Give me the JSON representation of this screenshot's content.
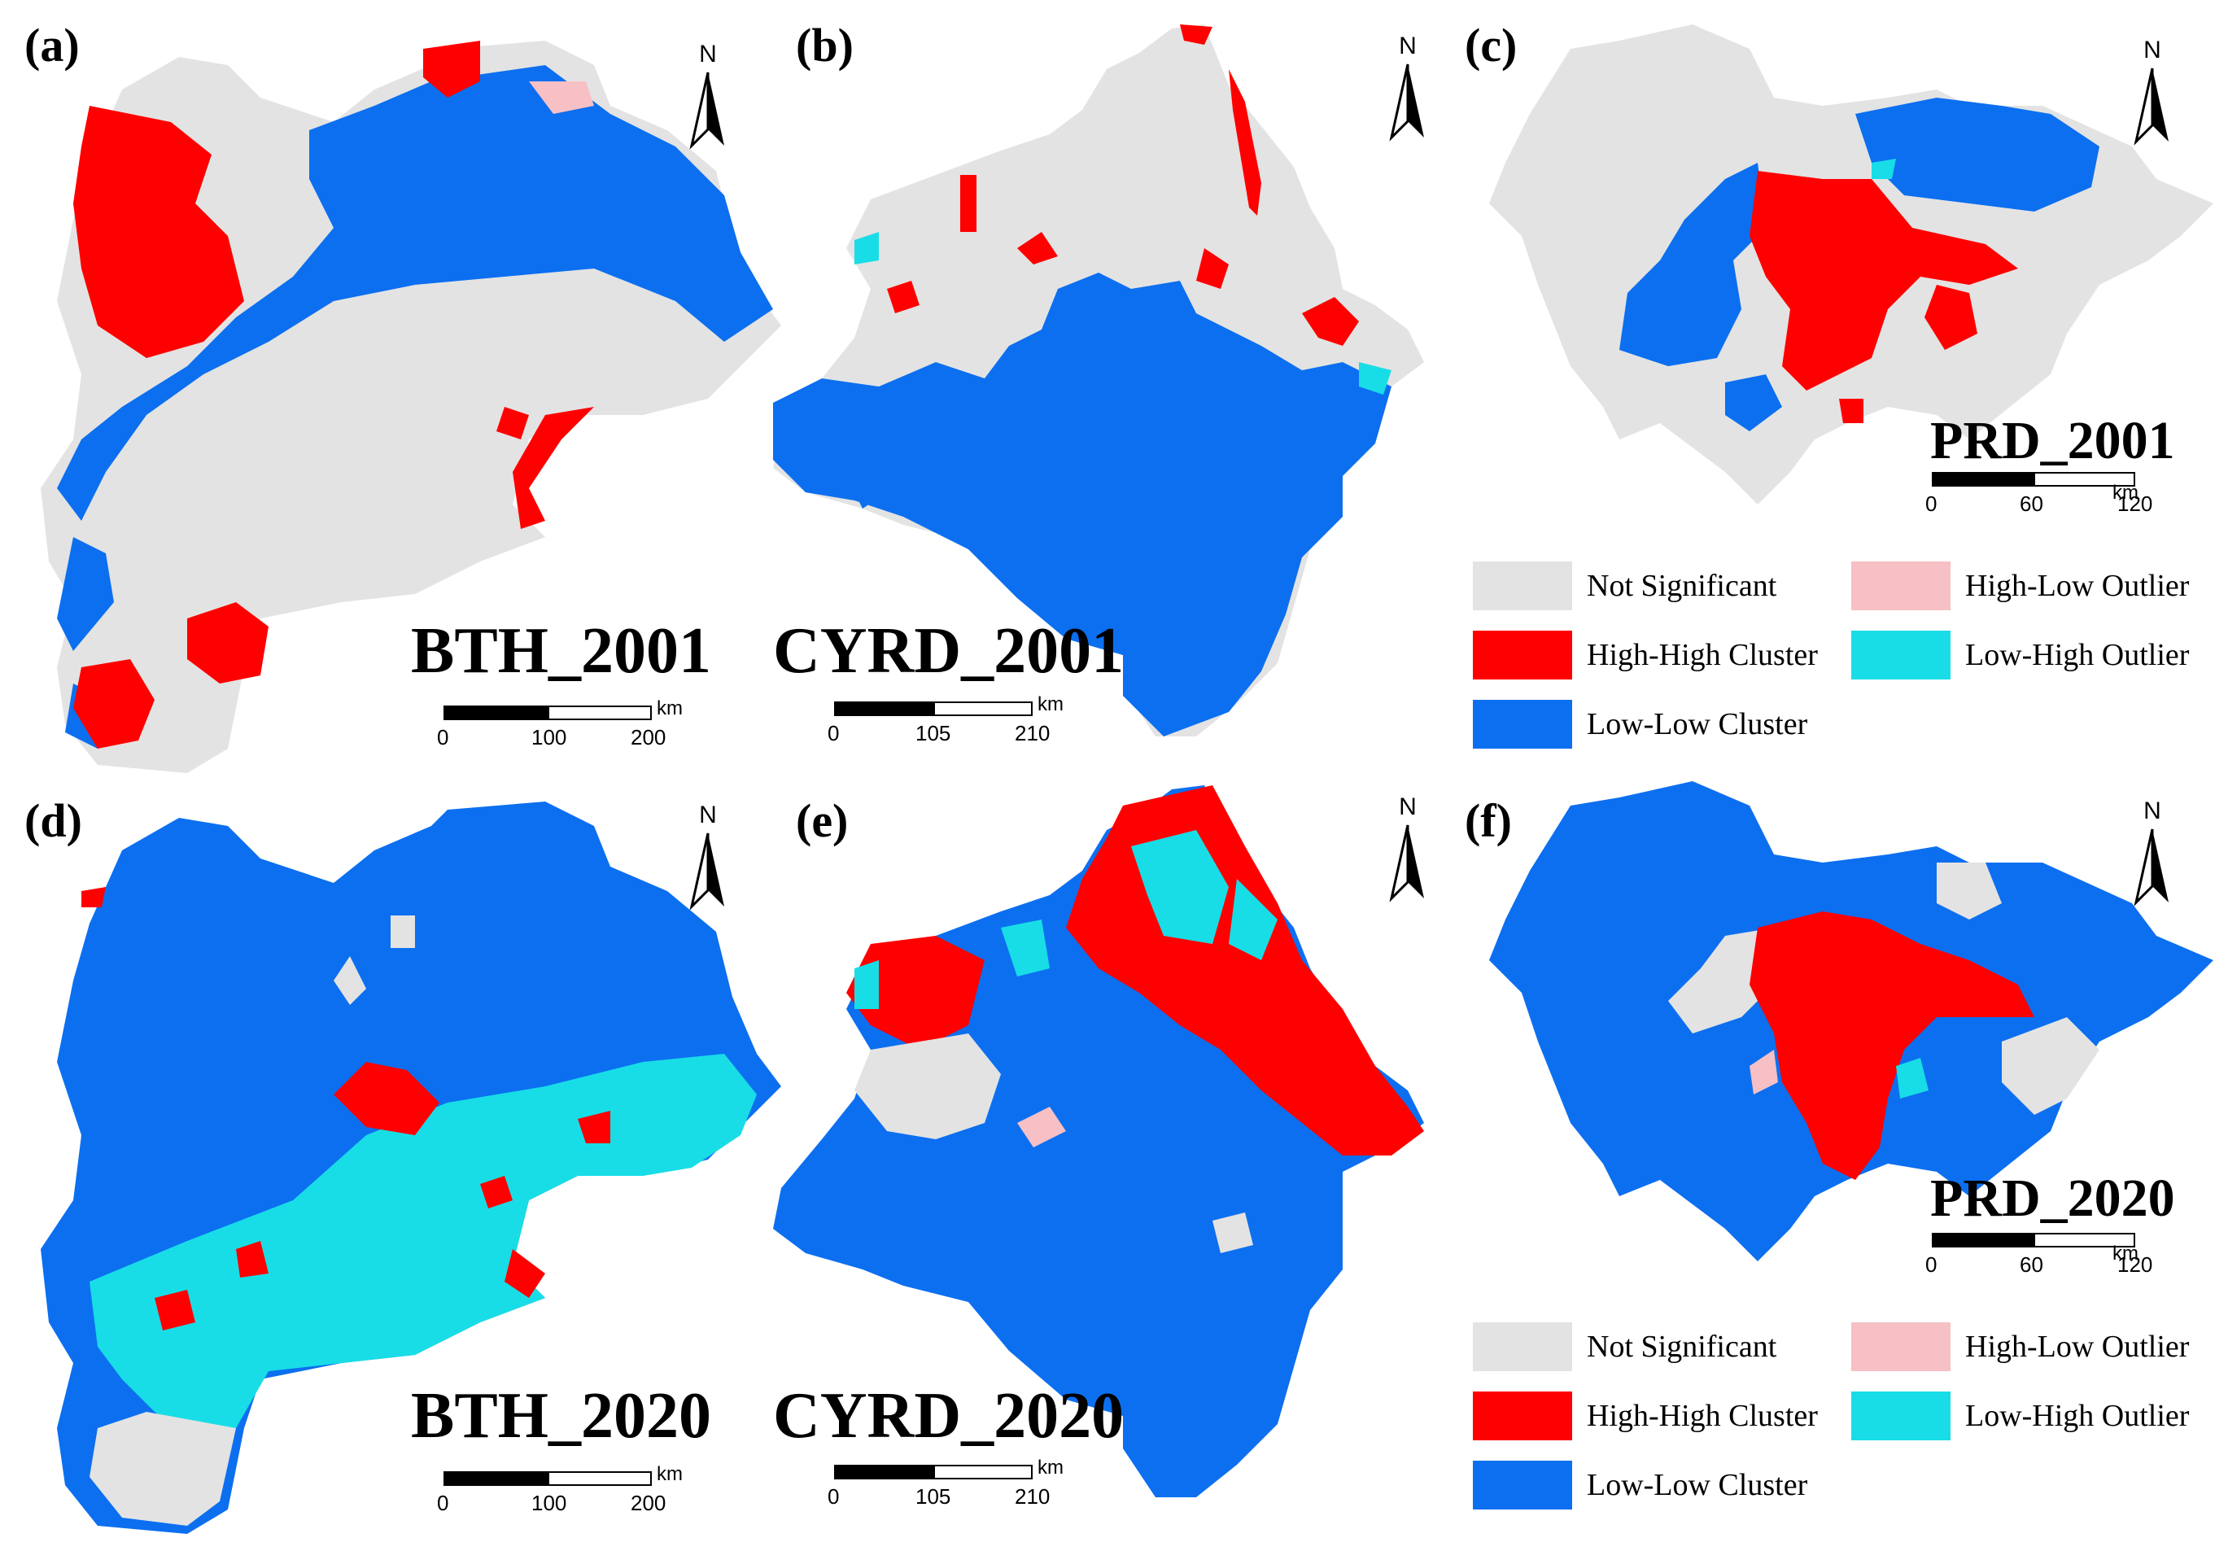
{
  "colors": {
    "not_significant": "#e3e3e3",
    "high_high": "#ff0000",
    "low_low": "#0c6ff0",
    "high_low": "#f6c0c4",
    "low_high": "#18dde6"
  },
  "panels": [
    {
      "label": "(a)",
      "title": "BTH_2001",
      "scale": {
        "ticks": [
          "0",
          "100",
          "200"
        ],
        "unit": "km"
      }
    },
    {
      "label": "(b)",
      "title": "CYRD_2001",
      "scale": {
        "ticks": [
          "0",
          "105",
          "210"
        ],
        "unit": "km"
      }
    },
    {
      "label": "(c)",
      "title": "PRD_2001",
      "scale": {
        "ticks": [
          "0",
          "60",
          "120"
        ],
        "unit": "km"
      }
    },
    {
      "label": "(d)",
      "title": "BTH_2020",
      "scale": {
        "ticks": [
          "0",
          "100",
          "200"
        ],
        "unit": "km"
      }
    },
    {
      "label": "(e)",
      "title": "CYRD_2020",
      "scale": {
        "ticks": [
          "0",
          "105",
          "210"
        ],
        "unit": "km"
      }
    },
    {
      "label": "(f)",
      "title": "PRD_2020",
      "scale": {
        "ticks": [
          "0",
          "60",
          "120"
        ],
        "unit": "km"
      }
    }
  ],
  "north_arrow": {
    "label": "N"
  },
  "legend": {
    "items": [
      {
        "key": "not_significant",
        "label": "Not Significant"
      },
      {
        "key": "high_low",
        "label": "High-Low Outlier"
      },
      {
        "key": "high_high",
        "label": "High-High Cluster"
      },
      {
        "key": "low_high",
        "label": "Low-High Outlier"
      },
      {
        "key": "low_low",
        "label": "Low-Low Cluster"
      }
    ]
  }
}
